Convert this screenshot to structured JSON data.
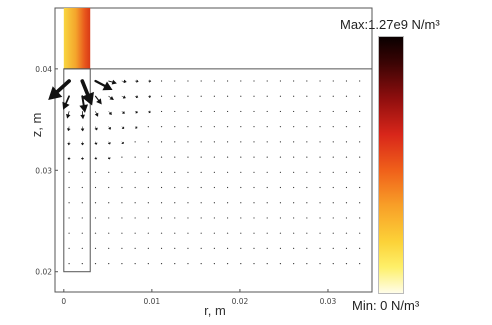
{
  "chart_data": {
    "type": "vector-field",
    "title": "",
    "xlabel": "r, m",
    "ylabel": "z, m",
    "xlim": [
      -0.001,
      0.035
    ],
    "ylim": [
      0.018,
      0.046
    ],
    "x_ticks": [
      {
        "value": 0,
        "label": "0"
      },
      {
        "value": 0.01,
        "label": "0.01"
      },
      {
        "value": 0.02,
        "label": "0.02"
      },
      {
        "value": 0.03,
        "label": "0.03"
      }
    ],
    "y_ticks": [
      {
        "value": 0.02,
        "label": "0.02"
      },
      {
        "value": 0.03,
        "label": "0.03"
      },
      {
        "value": 0.04,
        "label": "0.04"
      }
    ],
    "geometry": {
      "inner_rect": {
        "r0": 0,
        "r1": 0.003,
        "z0": 0.02,
        "z1": 0.04
      },
      "top_line_z": 0.04,
      "hot_column": {
        "r0": 0,
        "r1": 0.003,
        "z0": 0.04,
        "z1": 0.046
      }
    },
    "colorbar": {
      "max_label": "Max:1.27e9 N/m³",
      "min_label": "Min: 0 N/m³",
      "max_value": 1270000000.0,
      "min_value": 0,
      "unit": "N/m³",
      "colors": [
        "#0a0000",
        "#8f0e0e",
        "#d8261a",
        "#f8a028",
        "#fcd238",
        "#fffde8"
      ]
    },
    "field": {
      "grid_dr": 0.0015,
      "grid_dz": 0.0015,
      "source": {
        "r": 0.0017,
        "z": 0.0398
      },
      "magnitude_peak": 1270000000.0,
      "arrow_color": "#111111"
    }
  }
}
